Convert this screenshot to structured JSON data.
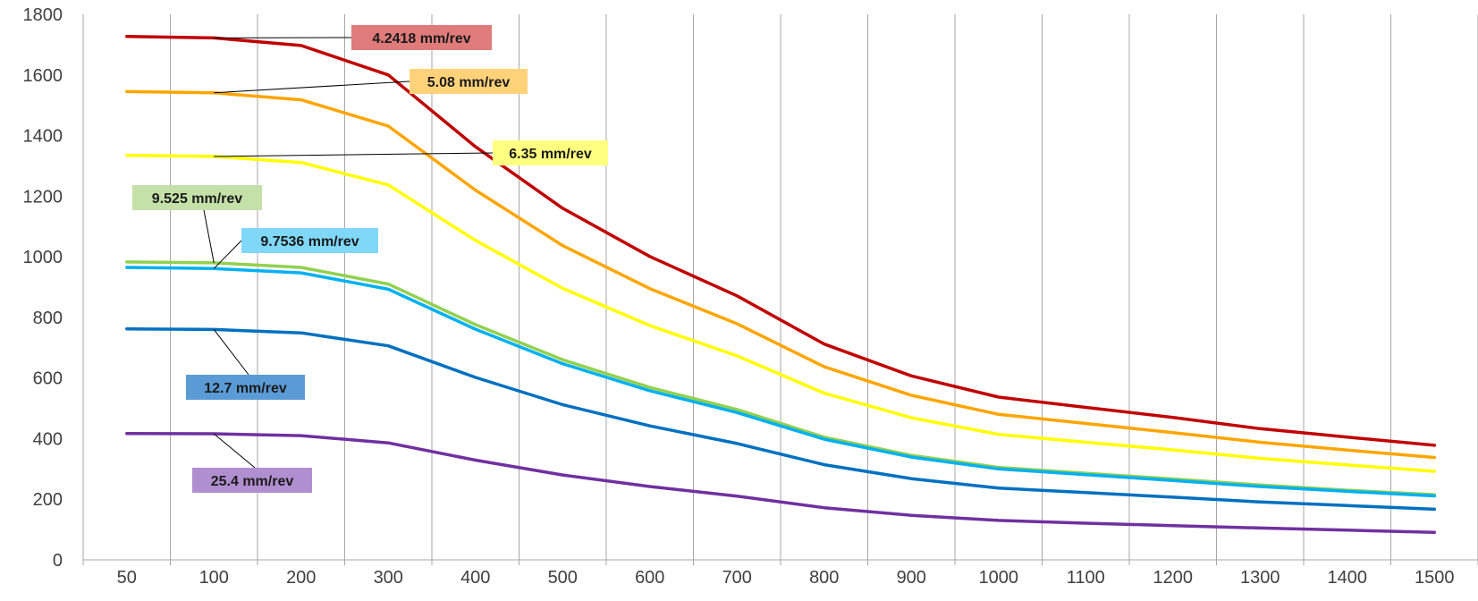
{
  "chart_data": {
    "type": "line",
    "title": "",
    "xlabel": "",
    "ylabel": "",
    "categories": [
      50,
      100,
      200,
      300,
      400,
      500,
      600,
      700,
      800,
      900,
      1000,
      1100,
      1200,
      1300,
      1400,
      1500
    ],
    "y_ticks": [
      0,
      200,
      400,
      600,
      800,
      1000,
      1200,
      1400,
      1600,
      1800
    ],
    "ylim": [
      0,
      1800
    ],
    "grid": "vertical",
    "series": [
      {
        "name": "4.2418 mm/rev",
        "color": "#c00000",
        "label_color": "#e07b7b",
        "values": [
          1727,
          1722,
          1697,
          1600,
          1363,
          1160,
          1001,
          871,
          712,
          607,
          537,
          503,
          470,
          433,
          405,
          378
        ]
      },
      {
        "name": "5.08 mm/rev",
        "color": "#ffa500",
        "label_color": "#ffd27a",
        "values": [
          1545,
          1541,
          1518,
          1431,
          1220,
          1037,
          895,
          779,
          637,
          543,
          480,
          450,
          420,
          388,
          362,
          338
        ]
      },
      {
        "name": "6.35 mm/rev",
        "color": "#ffff00",
        "label_color": "#ffff80",
        "values": [
          1335,
          1331,
          1311,
          1237,
          1054,
          896,
          773,
          673,
          550,
          469,
          414,
          388,
          363,
          335,
          313,
          292
        ]
      },
      {
        "name": "9.525 mm/rev",
        "color": "#92d050",
        "label_color": "#c5e0a8",
        "values": [
          983,
          980,
          965,
          910,
          776,
          660,
          569,
          496,
          405,
          345,
          305,
          286,
          267,
          247,
          230,
          215
        ]
      },
      {
        "name": "9.7536 mm/rev",
        "color": "#00b0f0",
        "label_color": "#7fd8f8",
        "values": [
          965,
          961,
          947,
          893,
          761,
          647,
          558,
          486,
          398,
          339,
          300,
          281,
          262,
          242,
          226,
          211
        ]
      },
      {
        "name": "12.7 mm/rev",
        "color": "#0070c0",
        "label_color": "#5b9bd5",
        "values": [
          762,
          760,
          749,
          706,
          602,
          512,
          442,
          384,
          314,
          268,
          237,
          222,
          207,
          191,
          179,
          167
        ]
      },
      {
        "name": "25.4 mm/rev",
        "color": "#7030a0",
        "label_color": "#b08fd0",
        "values": [
          417,
          416,
          410,
          386,
          329,
          280,
          242,
          210,
          172,
          147,
          130,
          121,
          113,
          105,
          98,
          91
        ]
      }
    ]
  }
}
